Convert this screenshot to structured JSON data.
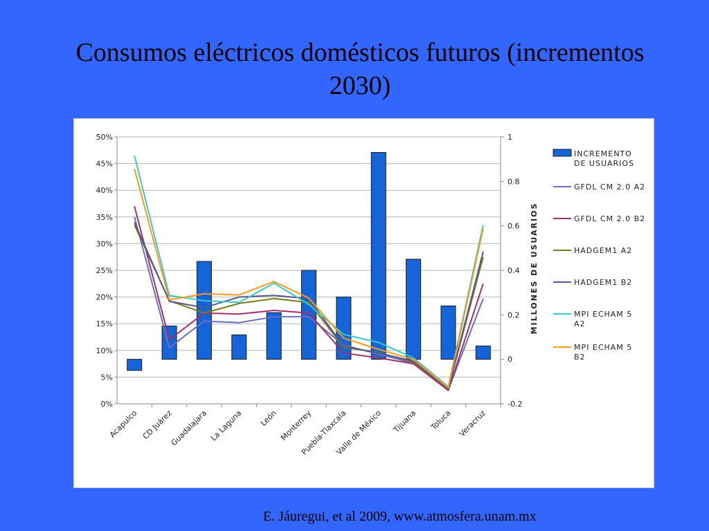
{
  "slide": {
    "title_line1": "Consumos eléctricos domésticos futuros (incrementos",
    "title_line2": "2030)",
    "citation": "E. Jáuregui, et al 2009, www.atmosfera.unam.mx",
    "background_color": "#3366ff"
  },
  "chart_data": {
    "type": "bar",
    "categories": [
      "Acapulco",
      "CD Juárez",
      "Guadalajara",
      "La Laguna",
      "León",
      "Monterrey",
      "Puebla-Tlaxcala",
      "Valle de México",
      "Tijuana",
      "Toluca",
      "Veracruz"
    ],
    "y_left": {
      "ylim": [
        0,
        50
      ],
      "ticks": [
        0,
        5,
        10,
        15,
        20,
        25,
        30,
        35,
        40,
        45,
        50
      ],
      "tick_labels": [
        "0%",
        "5%",
        "10%",
        "15%",
        "20%",
        "25%",
        "30%",
        "35%",
        "40%",
        "45%",
        "50%"
      ]
    },
    "y_right": {
      "label": "MILLONES DE USUARIOS",
      "ylim": [
        -0.2,
        1
      ],
      "ticks": [
        -0.2,
        0,
        0.2,
        0.4,
        0.6,
        0.8,
        1
      ],
      "tick_labels": [
        "-0.2",
        "0",
        "0.2",
        "0.4",
        "0.6",
        "0.8",
        "1"
      ]
    },
    "bars": {
      "name": "INCREMENTO DE USUARIOS",
      "axis": "right",
      "color": "#1565d8",
      "values": [
        -0.05,
        0.15,
        0.44,
        0.11,
        0.21,
        0.4,
        0.28,
        0.93,
        0.45,
        0.24,
        0.06
      ]
    },
    "series": [
      {
        "name": "GFDL CM 2.0 A2",
        "axis": "left",
        "color": "#6a6fc0",
        "values": [
          35.0,
          10.5,
          15.5,
          15.2,
          16.3,
          16.3,
          11.0,
          9.3,
          7.6,
          2.6,
          19.7
        ]
      },
      {
        "name": "GFDL CM 2.0 B2",
        "axis": "left",
        "color": "#a0306a",
        "values": [
          37.0,
          12.0,
          17.0,
          16.8,
          17.5,
          17.0,
          9.5,
          8.6,
          7.5,
          2.5,
          22.5
        ]
      },
      {
        "name": "HADGEM1 A2",
        "axis": "left",
        "color": "#7a7a1a",
        "values": [
          33.5,
          19.3,
          17.0,
          18.8,
          19.7,
          19.0,
          10.6,
          9.6,
          7.8,
          2.8,
          27.5
        ]
      },
      {
        "name": "HADGEM1 B2",
        "axis": "left",
        "color": "#55558f",
        "values": [
          34.0,
          19.2,
          18.0,
          20.0,
          20.3,
          19.7,
          10.8,
          9.5,
          8.0,
          2.8,
          28.5
        ]
      },
      {
        "name": "MPI ECHAM 5 A2",
        "axis": "left",
        "color": "#3ac8c8",
        "values": [
          46.5,
          20.3,
          19.3,
          19.0,
          22.6,
          18.6,
          13.0,
          11.5,
          8.6,
          3.2,
          33.5
        ]
      },
      {
        "name": "MPI ECHAM 5 B2",
        "axis": "left",
        "color": "#f59a1c",
        "values": [
          44.0,
          19.5,
          20.6,
          20.4,
          22.9,
          19.8,
          12.3,
          10.2,
          8.3,
          3.0,
          32.8
        ]
      }
    ],
    "legend": {
      "placement": "right",
      "entries": [
        {
          "type": "bar",
          "lines": [
            "INCREMENTO",
            "DE USUARIOS"
          ],
          "color": "#1565d8"
        },
        {
          "type": "line",
          "lines": [
            "GFDL CM 2.0 A2"
          ],
          "color": "#6a6fc0"
        },
        {
          "type": "line",
          "lines": [
            "GFDL CM 2.0 B2"
          ],
          "color": "#a0306a"
        },
        {
          "type": "line",
          "lines": [
            "HADGEM1 A2"
          ],
          "color": "#7a7a1a"
        },
        {
          "type": "line",
          "lines": [
            "HADGEM1 B2"
          ],
          "color": "#55558f"
        },
        {
          "type": "line",
          "lines": [
            "MPI ECHAM 5",
            "A2"
          ],
          "color": "#3ac8c8"
        },
        {
          "type": "line",
          "lines": [
            "MPI ECHAM 5",
            "B2"
          ],
          "color": "#f59a1c"
        }
      ]
    },
    "grid": true
  }
}
